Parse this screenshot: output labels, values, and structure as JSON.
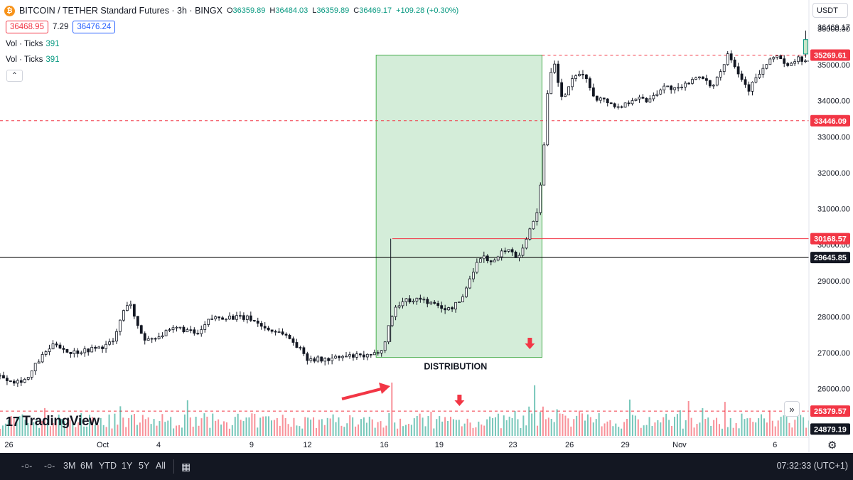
{
  "header": {
    "symbol_icon": "bitcoin-icon",
    "title": "BITCOIN / TETHER Standard Futures · 3h · BINGX",
    "ohlc": {
      "o_label": "O",
      "o": "36359.89",
      "h_label": "H",
      "h": "36484.03",
      "l_label": "L",
      "l": "36359.89",
      "c_label": "C",
      "c": "36469.17",
      "change": "+109.28 (+0.30%)"
    },
    "sell_price": "36468.95",
    "spread": "7.29",
    "buy_price": "36476.24"
  },
  "indicators": [
    {
      "label": "Vol · Ticks",
      "value": "391"
    },
    {
      "label": "Vol · Ticks",
      "value": "391"
    }
  ],
  "currency_button": "USDT",
  "brand": {
    "mark": "17",
    "name": "TradingView"
  },
  "annotation": {
    "text": "DISTRIBUTION"
  },
  "bottom_bar": {
    "ranges": [
      "3M",
      "6M",
      "YTD",
      "1Y",
      "5Y",
      "All"
    ],
    "clock": "07:32:33 (UTC+1)"
  },
  "colors": {
    "up": "#089981",
    "down": "#f23645",
    "zone_fill": "#d4edd9",
    "zone_stroke": "#4caf50",
    "arrow": "#f23645"
  },
  "chart_data": {
    "type": "candlestick",
    "timeframe": "3h",
    "ylim": [
      24650,
      36800
    ],
    "y_ticks": [
      26000,
      27000,
      28000,
      29000,
      30000,
      31000,
      32000,
      33000,
      34000,
      35000,
      36000
    ],
    "y_tick_labels": [
      "26000.00",
      "27000.00",
      "28000.00",
      "29000.00",
      "30000.00",
      "31000.00",
      "32000.00",
      "33000.00",
      "34000.00",
      "35000.00",
      "36000.00"
    ],
    "x_labels": [
      "26",
      "Oct",
      "4",
      "9",
      "12",
      "16",
      "19",
      "23",
      "26",
      "29",
      "Nov",
      "6"
    ],
    "last_price_label": "36469.17",
    "price_levels": [
      {
        "price": 35269.61,
        "label": "35269.61",
        "style": "dashed",
        "color": "#f23645"
      },
      {
        "price": 33446.09,
        "label": "33446.09",
        "style": "dashed",
        "color": "#f23645"
      },
      {
        "price": 30168.57,
        "label": "30168.57",
        "style": "solid",
        "color": "#f23645"
      },
      {
        "price": 29645.85,
        "label": "29645.85",
        "style": "solid",
        "color": "#000000"
      },
      {
        "price": 25379.57,
        "label": "25379.57",
        "style": "dashed",
        "color": "#f23645"
      },
      {
        "price": 24879.19,
        "label": "24879.19",
        "style": "none",
        "color": "#000000"
      }
    ],
    "zone": {
      "label": "DISTRIBUTION",
      "top_price": 35269.61,
      "bottom_price": 26870,
      "from_label": "16",
      "to_label": "23"
    },
    "price_path": [
      {
        "t": 0.0,
        "p": 26350
      },
      {
        "t": 0.02,
        "p": 26200
      },
      {
        "t": 0.035,
        "p": 26300
      },
      {
        "t": 0.045,
        "p": 26700
      },
      {
        "t": 0.06,
        "p": 27100
      },
      {
        "t": 0.07,
        "p": 27250
      },
      {
        "t": 0.085,
        "p": 27000
      },
      {
        "t": 0.1,
        "p": 27050
      },
      {
        "t": 0.125,
        "p": 27150
      },
      {
        "t": 0.14,
        "p": 27300
      },
      {
        "t": 0.15,
        "p": 28000
      },
      {
        "t": 0.16,
        "p": 28500
      },
      {
        "t": 0.168,
        "p": 27800
      },
      {
        "t": 0.18,
        "p": 27350
      },
      {
        "t": 0.2,
        "p": 27500
      },
      {
        "t": 0.22,
        "p": 27700
      },
      {
        "t": 0.245,
        "p": 27500
      },
      {
        "t": 0.26,
        "p": 27950
      },
      {
        "t": 0.28,
        "p": 28000
      },
      {
        "t": 0.31,
        "p": 27950
      },
      {
        "t": 0.33,
        "p": 27650
      },
      {
        "t": 0.35,
        "p": 27550
      },
      {
        "t": 0.365,
        "p": 27250
      },
      {
        "t": 0.38,
        "p": 26850
      },
      {
        "t": 0.4,
        "p": 26800
      },
      {
        "t": 0.43,
        "p": 26900
      },
      {
        "t": 0.46,
        "p": 26900
      },
      {
        "t": 0.475,
        "p": 27200
      },
      {
        "t": 0.482,
        "p": 27900
      },
      {
        "t": 0.49,
        "p": 28300
      },
      {
        "t": 0.5,
        "p": 28450
      },
      {
        "t": 0.52,
        "p": 28500
      },
      {
        "t": 0.54,
        "p": 28300
      },
      {
        "t": 0.555,
        "p": 28200
      },
      {
        "t": 0.57,
        "p": 28450
      },
      {
        "t": 0.585,
        "p": 29300
      },
      {
        "t": 0.595,
        "p": 29700
      },
      {
        "t": 0.61,
        "p": 29500
      },
      {
        "t": 0.625,
        "p": 29900
      },
      {
        "t": 0.64,
        "p": 29650
      },
      {
        "t": 0.655,
        "p": 30400
      },
      {
        "t": 0.665,
        "p": 31000
      },
      {
        "t": 0.672,
        "p": 32600
      },
      {
        "t": 0.678,
        "p": 34500
      },
      {
        "t": 0.685,
        "p": 35050
      },
      {
        "t": 0.695,
        "p": 34000
      },
      {
        "t": 0.705,
        "p": 34500
      },
      {
        "t": 0.72,
        "p": 34800
      },
      {
        "t": 0.735,
        "p": 34100
      },
      {
        "t": 0.75,
        "p": 34000
      },
      {
        "t": 0.765,
        "p": 33800
      },
      {
        "t": 0.785,
        "p": 34100
      },
      {
        "t": 0.8,
        "p": 34000
      },
      {
        "t": 0.82,
        "p": 34400
      },
      {
        "t": 0.84,
        "p": 34300
      },
      {
        "t": 0.86,
        "p": 34700
      },
      {
        "t": 0.88,
        "p": 34400
      },
      {
        "t": 0.895,
        "p": 35000
      },
      {
        "t": 0.9,
        "p": 35400
      },
      {
        "t": 0.91,
        "p": 34900
      },
      {
        "t": 0.925,
        "p": 34300
      },
      {
        "t": 0.94,
        "p": 34800
      },
      {
        "t": 0.96,
        "p": 35300
      },
      {
        "t": 0.975,
        "p": 34900
      },
      {
        "t": 0.985,
        "p": 35200
      },
      {
        "t": 1.0,
        "p": 35050
      }
    ],
    "volume_spikes": [
      {
        "t": 0.483,
        "v": 1.0
      },
      {
        "t": 0.66,
        "v": 0.95
      },
      {
        "t": 0.67,
        "v": 0.55
      },
      {
        "t": 0.688,
        "v": 0.5
      }
    ],
    "signals": [
      {
        "type": "arrow",
        "direction": "up-right",
        "near_label": "16"
      },
      {
        "type": "arrow",
        "direction": "down",
        "near_label": "19"
      },
      {
        "type": "arrow",
        "direction": "down",
        "near_label": "23"
      }
    ],
    "grid": false,
    "legend": "top-left"
  }
}
